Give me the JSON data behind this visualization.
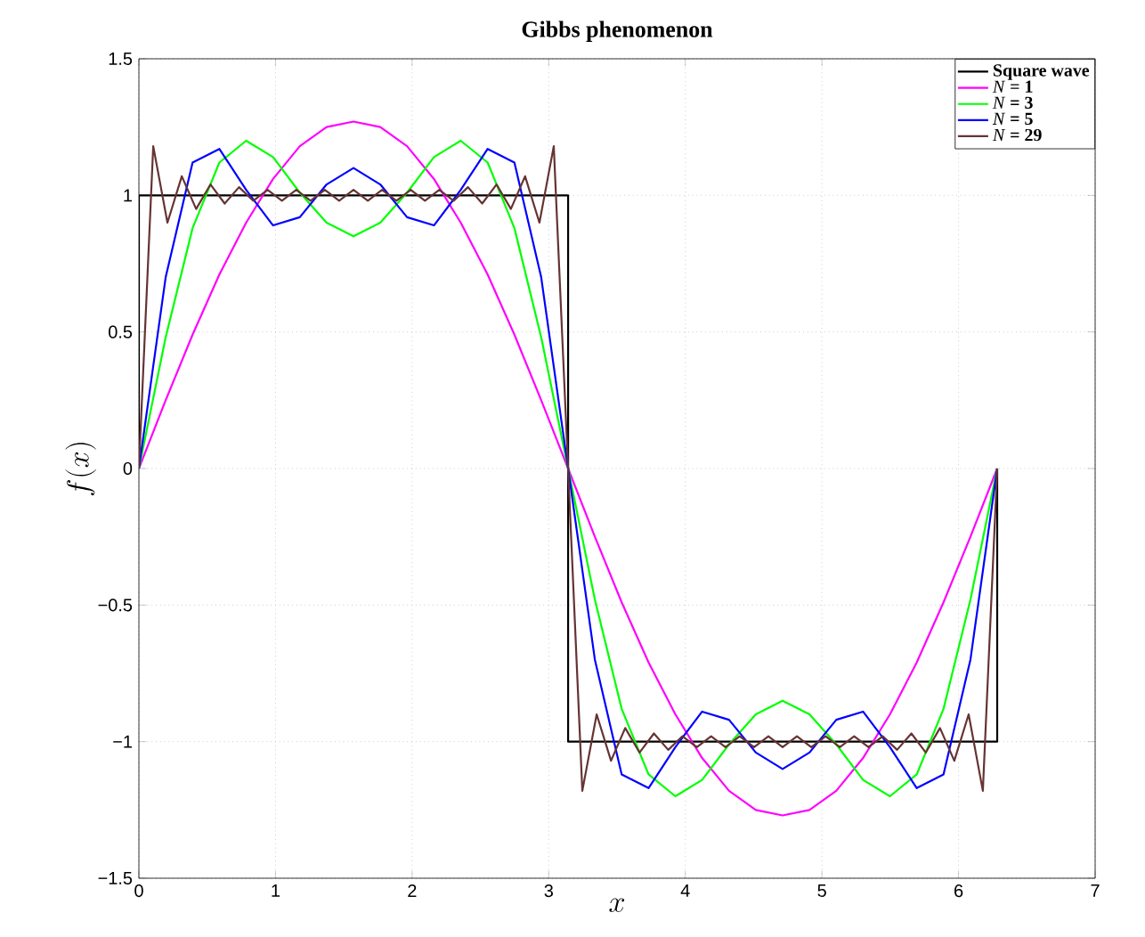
{
  "chart_data": {
    "type": "line",
    "title": "Gibbs phenomenon",
    "xlabel": "x",
    "ylabel": "f(x)",
    "x": [
      0,
      0.196,
      0.393,
      0.589,
      0.785,
      0.982,
      1.178,
      1.374,
      1.571,
      1.767,
      1.963,
      2.16,
      2.356,
      2.553,
      2.749,
      2.945,
      3.142,
      3.338,
      3.534,
      3.731,
      3.927,
      4.123,
      4.32,
      4.516,
      4.712,
      4.909,
      5.105,
      5.301,
      5.498,
      5.694,
      5.89,
      6.087,
      6.283
    ],
    "series": [
      {
        "name": "**Square wave**",
        "color": "#000000",
        "x": [
          0,
          0,
          3.142,
          3.142,
          6.283,
          6.283
        ],
        "values": [
          0,
          1,
          1,
          -1,
          -1,
          0
        ]
      },
      {
        "name": "*N* **= 1**",
        "color": "#ff00ff",
        "values": [
          0,
          0.25,
          0.49,
          0.71,
          0.9,
          1.06,
          1.18,
          1.25,
          1.27,
          1.25,
          1.18,
          1.06,
          0.9,
          0.71,
          0.49,
          0.25,
          0,
          -0.25,
          -0.49,
          -0.71,
          -0.9,
          -1.06,
          -1.18,
          -1.25,
          -1.27,
          -1.25,
          -1.18,
          -1.06,
          -0.9,
          -0.71,
          -0.49,
          -0.25,
          0
        ]
      },
      {
        "name": "*N* **= 3**",
        "color": "#00ff00",
        "values": [
          0,
          0.48,
          0.88,
          1.12,
          1.2,
          1.14,
          1.01,
          0.9,
          0.85,
          0.9,
          1.01,
          1.14,
          1.2,
          1.12,
          0.88,
          0.48,
          0,
          -0.48,
          -0.88,
          -1.12,
          -1.2,
          -1.14,
          -1.01,
          -0.9,
          -0.85,
          -0.9,
          -1.01,
          -1.14,
          -1.2,
          -1.12,
          -0.88,
          -0.48,
          0
        ]
      },
      {
        "name": "*N* **= 5**",
        "color": "#0000ff",
        "values": [
          0,
          0.7,
          1.12,
          1.17,
          1.02,
          0.89,
          0.92,
          1.04,
          1.1,
          1.04,
          0.92,
          0.89,
          1.02,
          1.17,
          1.12,
          0.7,
          0,
          -0.7,
          -1.12,
          -1.17,
          -1.02,
          -0.89,
          -0.92,
          -1.04,
          -1.1,
          -1.04,
          -0.92,
          -0.89,
          -1.02,
          -1.17,
          -1.12,
          -0.7,
          0
        ]
      },
      {
        "name": "*N* **= 29**",
        "color": "#663333",
        "x": [
          0,
          0.105,
          0.209,
          0.314,
          0.419,
          0.524,
          0.628,
          0.733,
          0.838,
          0.942,
          1.047,
          1.152,
          1.257,
          1.361,
          1.466,
          1.571,
          1.676,
          1.78,
          1.885,
          1.99,
          2.094,
          2.199,
          2.304,
          2.409,
          2.513,
          2.618,
          2.723,
          2.827,
          2.932,
          3.037,
          3.142,
          3.246,
          3.351,
          3.456,
          3.56,
          3.665,
          3.77,
          3.875,
          3.979,
          4.084,
          4.189,
          4.294,
          4.398,
          4.503,
          4.608,
          4.712,
          4.817,
          4.922,
          5.027,
          5.131,
          5.236,
          5.341,
          5.445,
          5.55,
          5.655,
          5.76,
          5.864,
          5.969,
          6.074,
          6.178,
          6.283
        ],
        "values": [
          0,
          1.18,
          0.9,
          1.07,
          0.95,
          1.04,
          0.97,
          1.03,
          0.98,
          1.02,
          0.98,
          1.02,
          0.98,
          1.02,
          0.98,
          1.02,
          0.98,
          1.02,
          0.98,
          1.02,
          0.98,
          1.02,
          0.98,
          1.03,
          0.97,
          1.04,
          0.95,
          1.07,
          0.9,
          1.18,
          0,
          -1.18,
          -0.9,
          -1.07,
          -0.95,
          -1.04,
          -0.97,
          -1.03,
          -0.98,
          -1.02,
          -0.98,
          -1.02,
          -0.98,
          -1.02,
          -0.98,
          -1.02,
          -0.98,
          -1.02,
          -0.98,
          -1.02,
          -0.98,
          -1.02,
          -0.98,
          -1.03,
          -0.97,
          -1.04,
          -0.95,
          -1.07,
          -0.9,
          -1.18,
          0
        ]
      }
    ],
    "xlim": [
      0,
      7
    ],
    "ylim": [
      -1.5,
      1.5
    ],
    "xticks": [
      0,
      1,
      2,
      3,
      4,
      5,
      6,
      7
    ],
    "yticks": [
      {
        "value": -1.5,
        "label": "−1.5"
      },
      {
        "value": -1,
        "label": "−1"
      },
      {
        "value": -0.5,
        "label": "−0.5"
      },
      0,
      0.5,
      1,
      1.5
    ],
    "grid": true,
    "legend": "top right",
    "marker": "none",
    "line_style": "solid"
  }
}
